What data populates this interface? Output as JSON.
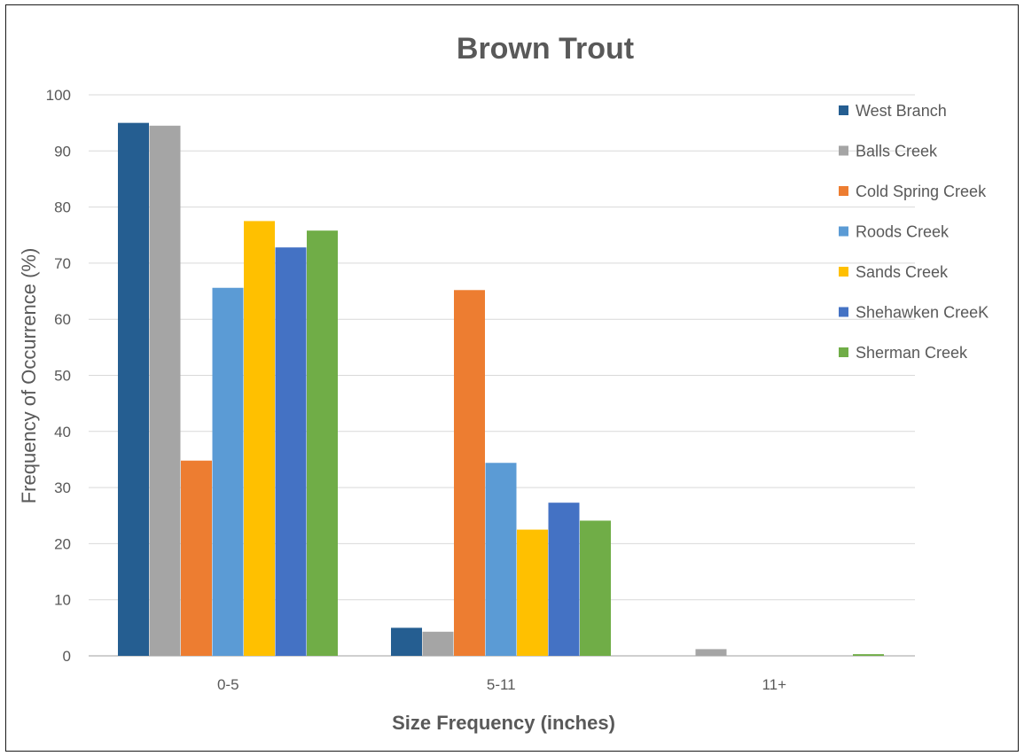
{
  "chart_data": {
    "type": "bar",
    "title": "Brown Trout",
    "xlabel": "Size Frequency (inches)",
    "ylabel": "Frequency of Occurrence (%)",
    "categories": [
      "0-5",
      "5-11",
      "11+"
    ],
    "ylim": [
      0,
      100
    ],
    "yticks": [
      0,
      10,
      20,
      30,
      40,
      50,
      60,
      70,
      80,
      90,
      100
    ],
    "grid": true,
    "legend_position": "right",
    "series": [
      {
        "name": "West Branch",
        "color": "#255e91",
        "values": [
          95,
          5,
          0
        ]
      },
      {
        "name": "Balls Creek",
        "color": "#a5a5a5",
        "values": [
          94.5,
          4.3,
          1.2
        ]
      },
      {
        "name": "Cold Spring Creek",
        "color": "#ed7d31",
        "values": [
          34.8,
          65.2,
          0
        ]
      },
      {
        "name": "Roods Creek",
        "color": "#5b9bd5",
        "values": [
          65.6,
          34.4,
          0
        ]
      },
      {
        "name": "Sands Creek",
        "color": "#ffc000",
        "values": [
          77.5,
          22.5,
          0
        ]
      },
      {
        "name": "Shehawken CreeK",
        "color": "#4472c4",
        "values": [
          72.8,
          27.3,
          0
        ]
      },
      {
        "name": "Sherman Creek",
        "color": "#70ad47",
        "values": [
          75.8,
          24.1,
          0.3
        ]
      }
    ]
  }
}
